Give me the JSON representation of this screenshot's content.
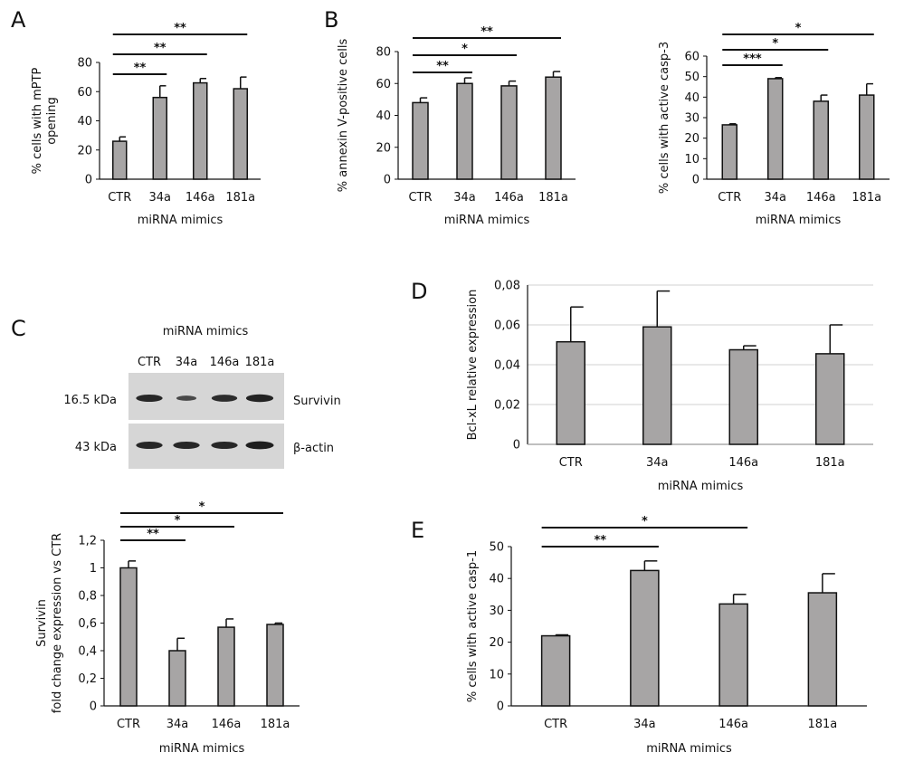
{
  "panel_labels": {
    "A": "A",
    "B": "B",
    "C": "C",
    "D": "D",
    "E": "E"
  },
  "colors": {
    "bar_fill": "#a7a5a5",
    "bar_stroke": "#111111",
    "grid": "#d0d0d0",
    "blot_bg": "#d6d6d6",
    "band": "#1a1a1a"
  },
  "western_blot": {
    "title": "miRNA mimics",
    "lanes": [
      "CTR",
      "34a",
      "146a",
      "181a"
    ],
    "rows": [
      {
        "mw": "16.5 kDa",
        "protein": "Survivin",
        "intensity": [
          0.85,
          0.45,
          0.8,
          0.9
        ]
      },
      {
        "mw": "43 kDa",
        "protein": "β-actin",
        "intensity": [
          0.85,
          0.85,
          0.85,
          0.95
        ]
      }
    ]
  },
  "chart_data": [
    {
      "id": "A1",
      "type": "bar",
      "categories": [
        "CTR",
        "34a",
        "146a",
        "181a"
      ],
      "values": [
        26,
        56,
        66,
        62
      ],
      "errors": [
        3,
        8,
        3,
        8
      ],
      "xlabel": "miRNA mimics",
      "ylabel": [
        "% cells with mPTP",
        "opening"
      ],
      "ylim": [
        0,
        80
      ],
      "yticks": [
        "0",
        "20",
        "40",
        "60",
        "80"
      ],
      "grid": false,
      "significance": [
        {
          "from": "CTR",
          "to": "34a",
          "label": "**"
        },
        {
          "from": "CTR",
          "to": "146a",
          "label": "**"
        },
        {
          "from": "CTR",
          "to": "181a",
          "label": "**"
        }
      ]
    },
    {
      "id": "B1",
      "type": "bar",
      "categories": [
        "CTR",
        "34a",
        "146a",
        "181a"
      ],
      "values": [
        48,
        60,
        58.5,
        64
      ],
      "errors": [
        3,
        3.5,
        3,
        3.5
      ],
      "xlabel": "miRNA mimics",
      "ylabel": [
        "% annexin V-positive cells"
      ],
      "ylim": [
        0,
        80
      ],
      "yticks": [
        "0",
        "20",
        "40",
        "60",
        "80"
      ],
      "grid": false,
      "significance": [
        {
          "from": "CTR",
          "to": "34a",
          "label": "**"
        },
        {
          "from": "CTR",
          "to": "146a",
          "label": "*"
        },
        {
          "from": "CTR",
          "to": "181a",
          "label": "**"
        }
      ]
    },
    {
      "id": "B2",
      "type": "bar",
      "categories": [
        "CTR",
        "34a",
        "146a",
        "181a"
      ],
      "values": [
        26.5,
        49,
        38,
        41
      ],
      "errors": [
        0.5,
        0.5,
        3,
        5.5
      ],
      "xlabel": "miRNA mimics",
      "ylabel": [
        "% cells with active casp-3"
      ],
      "ylim": [
        0,
        60
      ],
      "yticks": [
        "0",
        "10",
        "20",
        "30",
        "40",
        "50",
        "60"
      ],
      "grid": false,
      "significance": [
        {
          "from": "CTR",
          "to": "34a",
          "label": "***"
        },
        {
          "from": "CTR",
          "to": "146a",
          "label": "*"
        },
        {
          "from": "CTR",
          "to": "181a",
          "label": "*"
        }
      ]
    },
    {
      "id": "C1",
      "type": "bar",
      "categories": [
        "CTR",
        "34a",
        "146a",
        "181a"
      ],
      "values": [
        1.0,
        0.4,
        0.57,
        0.59
      ],
      "errors": [
        0.05,
        0.09,
        0.06,
        0.01
      ],
      "xlabel": "miRNA mimics",
      "ylabel": [
        "Survivin",
        "fold change expression vs CTR"
      ],
      "ylim": [
        0,
        1.2
      ],
      "yticks": [
        "0",
        "0,2",
        "0,4",
        "0,6",
        "0,8",
        "1",
        "1,2"
      ],
      "grid": false,
      "significance": [
        {
          "from": "CTR",
          "to": "34a",
          "label": "**"
        },
        {
          "from": "CTR",
          "to": "146a",
          "label": "*"
        },
        {
          "from": "CTR",
          "to": "181a",
          "label": "*"
        }
      ]
    },
    {
      "id": "D1",
      "type": "bar",
      "categories": [
        "CTR",
        "34a",
        "146a",
        "181a"
      ],
      "values": [
        0.0515,
        0.059,
        0.0475,
        0.0455
      ],
      "errors": [
        0.0175,
        0.018,
        0.002,
        0.0145
      ],
      "xlabel": "miRNA mimics",
      "ylabel": [
        "Bcl-xL relative expression"
      ],
      "ylim": [
        0,
        0.08
      ],
      "yticks": [
        "0",
        "0,02",
        "0,04",
        "0,06",
        "0,08"
      ],
      "grid": true,
      "significance": []
    },
    {
      "id": "E1",
      "type": "bar",
      "categories": [
        "CTR",
        "34a",
        "146a",
        "181a"
      ],
      "values": [
        22,
        42.5,
        32,
        35.5
      ],
      "errors": [
        0.3,
        3,
        3,
        6
      ],
      "xlabel": "miRNA mimics",
      "ylabel": [
        "% cells with active casp-1"
      ],
      "ylim": [
        0,
        50
      ],
      "yticks": [
        "0",
        "10",
        "20",
        "30",
        "40",
        "50"
      ],
      "grid": false,
      "significance": [
        {
          "from": "CTR",
          "to": "34a",
          "label": "**"
        },
        {
          "from": "CTR",
          "to": "146a",
          "label": "*"
        }
      ]
    }
  ]
}
